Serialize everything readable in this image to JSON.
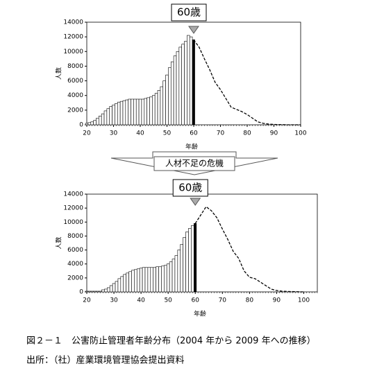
{
  "chart_data": [
    {
      "type": "bar",
      "annotation": "60歳",
      "xlabel": "年齢",
      "ylabel": "人数",
      "xlim": [
        20,
        100
      ],
      "ylim": [
        0,
        14000
      ],
      "xticks": [
        20,
        30,
        40,
        50,
        60,
        70,
        80,
        90,
        100
      ],
      "yticks": [
        0,
        2000,
        4000,
        6000,
        8000,
        10000,
        12000,
        14000
      ],
      "x": [
        20,
        21,
        22,
        23,
        24,
        25,
        26,
        27,
        28,
        29,
        30,
        31,
        32,
        33,
        34,
        35,
        36,
        37,
        38,
        39,
        40,
        41,
        42,
        43,
        44,
        45,
        46,
        47,
        48,
        49,
        50,
        51,
        52,
        53,
        54,
        55,
        56,
        57,
        58,
        59,
        60
      ],
      "values": [
        200,
        300,
        400,
        600,
        900,
        1200,
        1500,
        1900,
        2200,
        2500,
        2700,
        2900,
        3100,
        3200,
        3300,
        3400,
        3500,
        3500,
        3500,
        3500,
        3500,
        3500,
        3600,
        3700,
        3800,
        4000,
        4300,
        4700,
        5200,
        6000,
        6800,
        7800,
        8600,
        9400,
        10000,
        10600,
        11000,
        11400,
        12200,
        12000,
        11600
      ],
      "line_x": [
        60,
        62,
        64,
        66,
        68,
        70,
        72,
        74,
        76,
        78,
        80,
        82,
        84,
        86,
        88,
        90,
        95,
        100
      ],
      "line_values": [
        11600,
        10600,
        9000,
        7500,
        5800,
        4800,
        3600,
        2400,
        2100,
        1800,
        1400,
        900,
        400,
        200,
        100,
        50,
        0,
        0
      ]
    },
    {
      "type": "bar",
      "annotation": "60歳",
      "xlabel": "年齢",
      "ylabel": "人数",
      "xlim": [
        20,
        105
      ],
      "ylim": [
        0,
        14000
      ],
      "xticks": [
        20,
        30,
        40,
        50,
        60,
        70,
        80,
        90,
        100
      ],
      "yticks": [
        0,
        2000,
        4000,
        6000,
        8000,
        10000,
        12000,
        14000
      ],
      "x": [
        20,
        21,
        22,
        23,
        24,
        25,
        26,
        27,
        28,
        29,
        30,
        31,
        32,
        33,
        34,
        35,
        36,
        37,
        38,
        39,
        40,
        41,
        42,
        43,
        44,
        45,
        46,
        47,
        48,
        49,
        50,
        51,
        52,
        53,
        54,
        55,
        56,
        57,
        58,
        59,
        60
      ],
      "values": [
        100,
        100,
        100,
        100,
        100,
        100,
        300,
        400,
        600,
        900,
        1200,
        1500,
        1900,
        2200,
        2500,
        2700,
        2900,
        3100,
        3200,
        3300,
        3400,
        3500,
        3500,
        3500,
        3500,
        3500,
        3600,
        3600,
        3700,
        3800,
        4000,
        4300,
        4700,
        5200,
        6000,
        6800,
        7800,
        8600,
        9100,
        9500,
        9800
      ],
      "line_x": [
        60,
        62,
        64,
        66,
        68,
        70,
        72,
        74,
        76,
        78,
        80,
        82,
        84,
        86,
        88,
        90,
        92,
        95,
        100
      ],
      "line_values": [
        9800,
        11000,
        12200,
        11600,
        10600,
        9000,
        7500,
        5800,
        4800,
        3000,
        2100,
        1900,
        1400,
        900,
        400,
        200,
        100,
        50,
        0
      ]
    }
  ],
  "transition_label": "人材不足の危機",
  "caption": "図２－１　公害防止管理者年齢分布（2004 年から 2009 年への推移）",
  "source": "出所：（社）産業環境管理協会提出資料"
}
